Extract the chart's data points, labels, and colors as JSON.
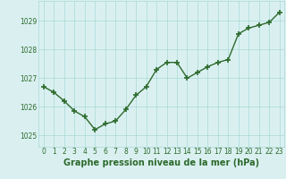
{
  "x": [
    0,
    1,
    2,
    3,
    4,
    5,
    6,
    7,
    8,
    9,
    10,
    11,
    12,
    13,
    14,
    15,
    16,
    17,
    18,
    19,
    20,
    21,
    22,
    23
  ],
  "y": [
    1026.7,
    1026.5,
    1026.2,
    1025.85,
    1025.65,
    1025.2,
    1025.4,
    1025.5,
    1025.9,
    1026.4,
    1026.7,
    1027.3,
    1027.55,
    1027.55,
    1027.0,
    1027.2,
    1027.4,
    1027.55,
    1027.65,
    1028.55,
    1028.75,
    1028.85,
    1028.95,
    1029.3
  ],
  "line_color": "#2d6a2d",
  "marker": "+",
  "marker_size": 4,
  "marker_linewidth": 1.2,
  "line_width": 1.0,
  "bg_color": "#daf0f0",
  "grid_color": "#a8d8d8",
  "xlabel": "Graphe pression niveau de la mer (hPa)",
  "xlabel_fontsize": 7,
  "xlabel_color": "#2d6a2d",
  "xlabel_bold": true,
  "yticks": [
    1025,
    1026,
    1027,
    1028,
    1029
  ],
  "xticks": [
    0,
    1,
    2,
    3,
    4,
    5,
    6,
    7,
    8,
    9,
    10,
    11,
    12,
    13,
    14,
    15,
    16,
    17,
    18,
    19,
    20,
    21,
    22,
    23
  ],
  "ylim": [
    1024.6,
    1029.7
  ],
  "xlim": [
    -0.5,
    23.5
  ],
  "tick_fontsize": 5.5,
  "tick_color": "#2d6a2d"
}
